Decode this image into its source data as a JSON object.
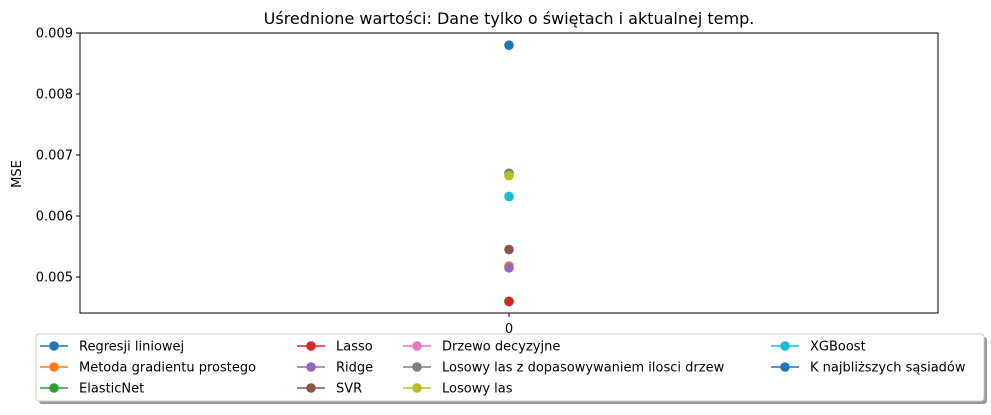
{
  "chart_data": {
    "type": "scatter",
    "title": "Uśrednione wartości: Dane tylko o świętach i aktualnej temp.",
    "xlabel": "",
    "ylabel": "MSE",
    "x_categories": [
      "0"
    ],
    "xlim": [
      -0.055,
      0.055
    ],
    "ylim": [
      0.00441,
      0.009
    ],
    "yticks": [
      0.005,
      0.006,
      0.007,
      0.008,
      0.009
    ],
    "ytick_labels": [
      "0.005",
      "0.006",
      "0.007",
      "0.008",
      "0.009"
    ],
    "grid": false,
    "legend_position": "below plot, 4 columns, with shadow",
    "series": [
      {
        "name": "Regresji liniowej",
        "color": "#1f77b4",
        "values": [
          0.0046
        ]
      },
      {
        "name": "Metoda gradientu prostego",
        "color": "#ff7f0e",
        "values": [
          0.00518
        ]
      },
      {
        "name": "ElasticNet",
        "color": "#2ca02c",
        "values": [
          0.0046
        ]
      },
      {
        "name": "Lasso",
        "color": "#d62728",
        "values": [
          0.0046
        ]
      },
      {
        "name": "Ridge",
        "color": "#9467bd",
        "values": [
          0.00515
        ]
      },
      {
        "name": "SVR",
        "color": "#8c564b",
        "values": [
          0.00545
        ]
      },
      {
        "name": "Drzewo decyzyjne",
        "color": "#e377c2",
        "values": [
          0.0067
        ]
      },
      {
        "name": "Losowy las z dopasowywaniem ilosci drzew",
        "color": "#7f7f7f",
        "values": [
          0.0067
        ]
      },
      {
        "name": "Losowy las",
        "color": "#bcbd22",
        "values": [
          0.00666
        ]
      },
      {
        "name": "XGBoost",
        "color": "#17becf",
        "values": [
          0.00632
        ]
      },
      {
        "name": "K najbliższych sąsiadów",
        "color": "#1f77b4",
        "values": [
          0.0088
        ]
      }
    ]
  }
}
